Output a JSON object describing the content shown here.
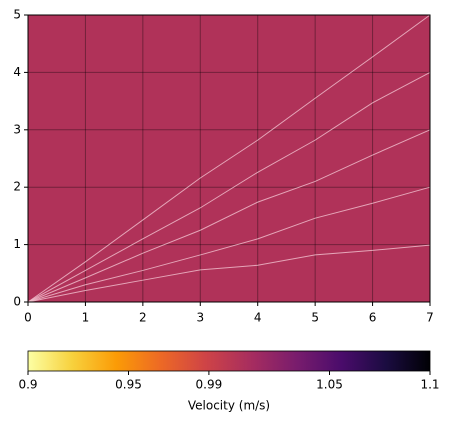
{
  "chart_data": {
    "type": "line",
    "x": [
      0,
      1,
      2,
      3,
      4,
      5,
      6,
      7
    ],
    "series": [
      {
        "color": "#f2c2cf",
        "values": [
          0,
          0.2,
          0.38,
          0.56,
          0.64,
          0.82,
          0.9,
          0.99
        ]
      },
      {
        "color": "#f2c2cf",
        "values": [
          0,
          0.3,
          0.55,
          0.82,
          1.1,
          1.46,
          1.72,
          2
        ]
      },
      {
        "color": "#f2c2cf",
        "values": [
          0,
          0.42,
          0.85,
          1.25,
          1.74,
          2.1,
          2.56,
          3
        ]
      },
      {
        "color": "#f2c2cf",
        "values": [
          0,
          0.55,
          1.1,
          1.64,
          2.26,
          2.82,
          3.47,
          4
        ]
      },
      {
        "color": "#f2c2cf",
        "values": [
          0,
          0.7,
          1.43,
          2.16,
          2.82,
          3.55,
          4.27,
          5
        ]
      }
    ],
    "field": {
      "value": 1.0,
      "color": "#b03259"
    },
    "xlim": [
      0,
      7
    ],
    "xticks": [
      0,
      1,
      2,
      3,
      4,
      5,
      6,
      7
    ],
    "ylim": [
      0,
      5
    ],
    "yticks": [
      0,
      1,
      2,
      3,
      4,
      5
    ],
    "grid": true,
    "colorbar": {
      "label": "Velocity (m/s)",
      "lim": [
        0.9,
        1.1
      ],
      "ticks": [
        0.9,
        0.95,
        0.99,
        1.05,
        1.1
      ]
    }
  }
}
